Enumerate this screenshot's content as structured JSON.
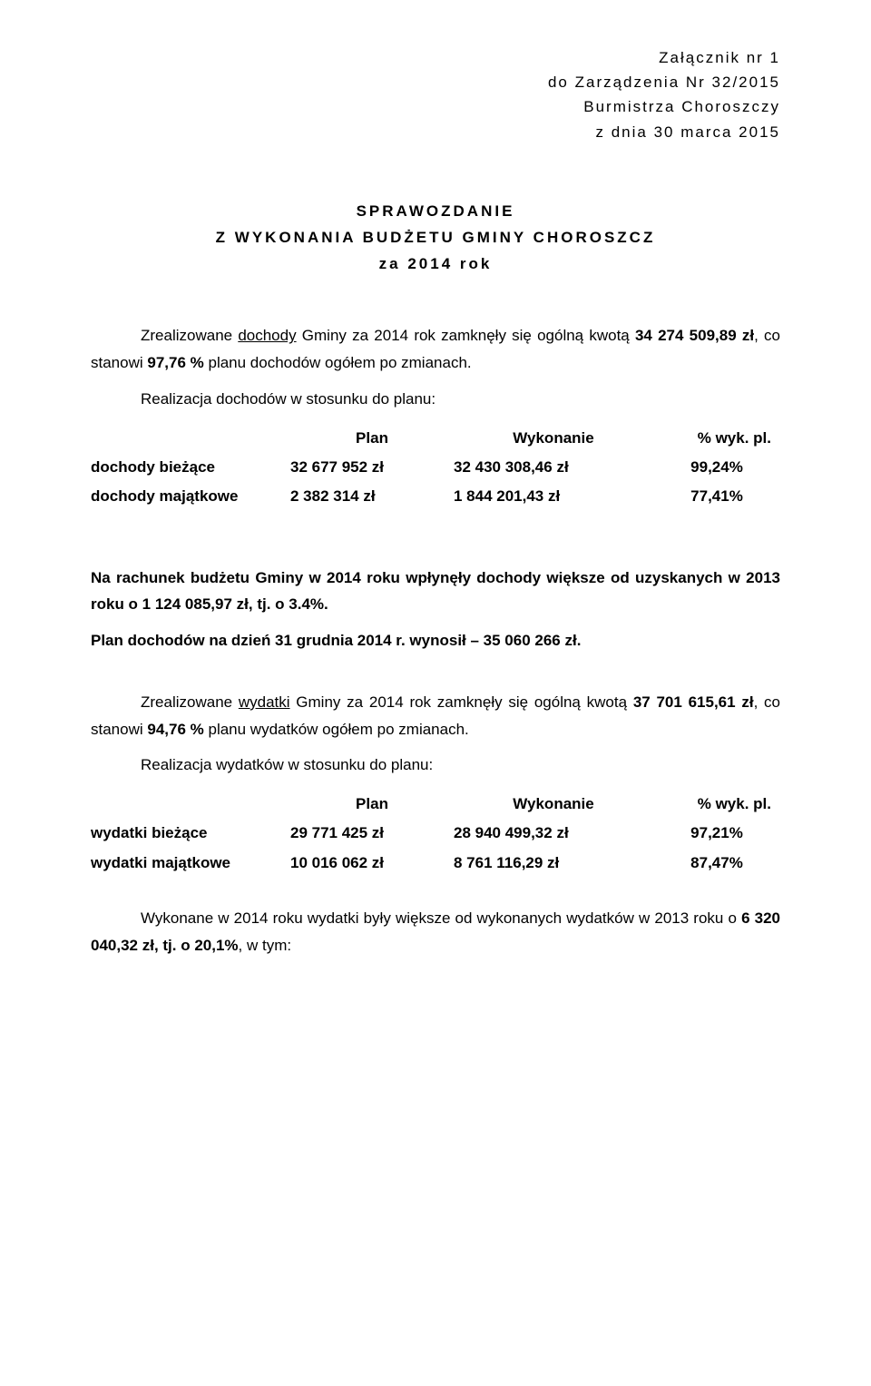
{
  "header": {
    "line1": "Załącznik nr 1",
    "line2": "do Zarządzenia Nr 32/2015",
    "line3": "Burmistrza Choroszczy",
    "line4": "z dnia 30 marca 2015"
  },
  "title": {
    "line1": "SPRAWOZDANIE",
    "line2": "Z WYKONANIA BUDŻETU GMINY CHOROSZCZ",
    "line3": "za 2014 rok"
  },
  "dochody": {
    "para1_pre": "Zrealizowane ",
    "para1_link": "dochody",
    "para1_mid": " Gminy za 2014 rok zamknęły się ogólną kwotą ",
    "para1_amount": "34 274 509,89 zł",
    "para1_after_amount": ", co stanowi ",
    "para1_pct": "97,76 %",
    "para1_tail": " planu dochodów ogółem po zmianach.",
    "para2": "Realizacja dochodów w stosunku do planu:",
    "table": {
      "head": {
        "plan": "Plan",
        "wyk": "Wykonanie",
        "pct": "% wyk. pl."
      },
      "rows": [
        {
          "label": "dochody bieżące",
          "plan": "32 677 952 zł",
          "wyk": "32 430 308,46 zł",
          "pct": "99,24%"
        },
        {
          "label": "dochody majątkowe",
          "plan": "2 382 314 zł",
          "wyk": "1 844 201,43 zł",
          "pct": "77,41%"
        }
      ]
    },
    "summary_pre": "Na rachunek budżetu Gminy w 2014 roku wpłynęły dochody większe od uzyskanych w 2013 roku o ",
    "summary_amount": "1 124 085,97 zł, tj. o 3.4%.",
    "plan_line_pre": "Plan dochodów na dzień 31 grudnia 2014 r. wynosił – ",
    "plan_line_amount": "35 060 266 zł."
  },
  "wydatki": {
    "para1_pre": "Zrealizowane ",
    "para1_link": "wydatki",
    "para1_mid": " Gminy za 2014 rok zamknęły się ogólną kwotą ",
    "para1_amount": "37 701 615,61 zł",
    "para1_after_amount": ", co stanowi ",
    "para1_pct": "94,76 %",
    "para1_tail": " planu wydatków ogółem po zmianach.",
    "para2": "Realizacja wydatków w stosunku do planu:",
    "table": {
      "head": {
        "plan": "Plan",
        "wyk": "Wykonanie",
        "pct": "% wyk. pl."
      },
      "rows": [
        {
          "label": "wydatki bieżące",
          "plan": "29 771 425 zł",
          "wyk": "28 940 499,32 zł",
          "pct": "97,21%"
        },
        {
          "label": "wydatki majątkowe",
          "plan": "10 016 062 zł",
          "wyk": "8 761 116,29 zł",
          "pct": "87,47%"
        }
      ]
    },
    "summary_pre": "Wykonane w 2014 roku wydatki były większe od wykonanych wydatków w 2013 roku o ",
    "summary_amount": "6 320 040,32 zł, tj. o 20,1%",
    "summary_tail": ", w tym:"
  }
}
